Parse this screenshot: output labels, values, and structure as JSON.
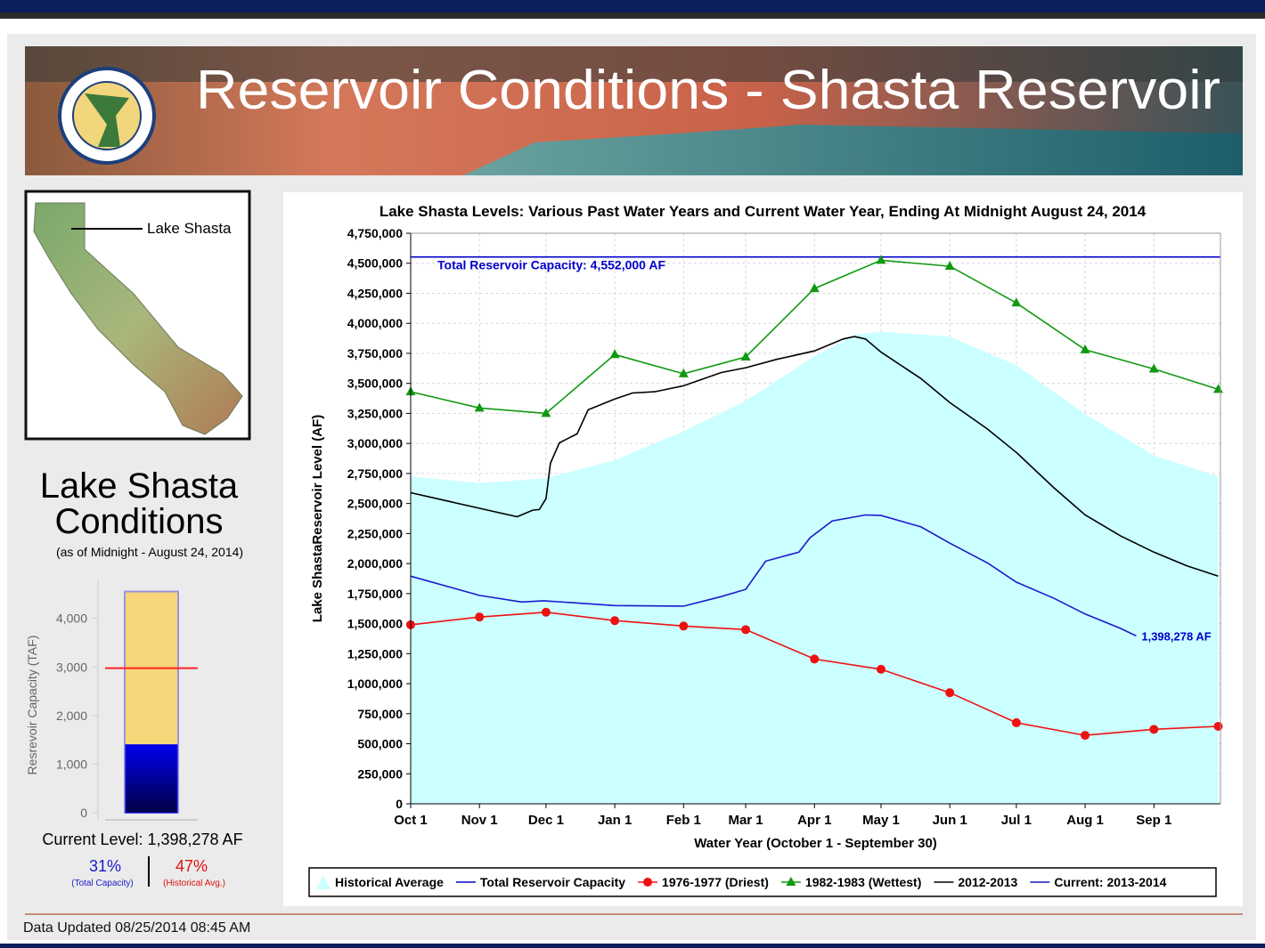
{
  "header": {
    "title": "Reservoir Conditions - Shasta Reservoir"
  },
  "sidebar": {
    "map_label": "Lake Shasta",
    "heading_line1": "Lake Shasta",
    "heading_line2": "Conditions",
    "as_of": "(as of Midnight - August 24, 2014)",
    "current_level": "Current Level: 1,398,278 AF",
    "pct_capacity": "31%",
    "pct_capacity_note": "(Total Capacity)",
    "pct_average": "47%",
    "pct_average_note": "(Historical Avg.)"
  },
  "chart_data": [
    {
      "type": "gauge",
      "y_label": "Resrevoir Capacity (TAF)",
      "ylim": [
        0,
        4800
      ],
      "yticks": [
        0,
        {
          "value": 1000,
          "label": "1,000"
        },
        {
          "value": 2000,
          "label": "2,000"
        },
        {
          "value": 3000,
          "label": "3,000"
        },
        {
          "value": 4000,
          "label": "4,000"
        }
      ],
      "capacity": 4552,
      "capacity_color": "#f7d67a",
      "current": 1398.278,
      "current_color": "#0000ee",
      "historical_average": 2975,
      "historical_average_color": "#ff2222"
    },
    {
      "type": "line",
      "title": "Lake Shasta Levels: Various Past Water Years and Current Water Year, Ending At Midnight August 24, 2014",
      "x_label": "Water Year (October 1 - September 30)",
      "y_label": "Lake ShastaReservoir Level (AF)",
      "xlim": [
        0,
        365
      ],
      "xticks": [
        {
          "value": 0,
          "label": "Oct 1"
        },
        {
          "value": 31,
          "label": "Nov 1"
        },
        {
          "value": 61,
          "label": "Dec 1"
        },
        {
          "value": 92,
          "label": "Jan 1"
        },
        {
          "value": 123,
          "label": "Feb 1"
        },
        {
          "value": 151,
          "label": "Mar 1"
        },
        {
          "value": 182,
          "label": "Apr 1"
        },
        {
          "value": 212,
          "label": "May 1"
        },
        {
          "value": 243,
          "label": "Jun 1"
        },
        {
          "value": 273,
          "label": "Jul 1"
        },
        {
          "value": 304,
          "label": "Aug 1"
        },
        {
          "value": 335,
          "label": "Sep 1"
        }
      ],
      "ylim": [
        0,
        4750000
      ],
      "yticks": [
        0,
        {
          "value": 250000,
          "label": "250,000"
        },
        {
          "value": 500000,
          "label": "500,000"
        },
        {
          "value": 750000,
          "label": "750,000"
        },
        {
          "value": 1000000,
          "label": "1,000,000"
        },
        {
          "value": 1250000,
          "label": "1,250,000"
        },
        {
          "value": 1500000,
          "label": "1,500,000"
        },
        {
          "value": 1750000,
          "label": "1,750,000"
        },
        {
          "value": 2000000,
          "label": "2,000,000"
        },
        {
          "value": 2250000,
          "label": "2,250,000"
        },
        {
          "value": 2500000,
          "label": "2,500,000"
        },
        {
          "value": 2750000,
          "label": "2,750,000"
        },
        {
          "value": 3000000,
          "label": "3,000,000"
        },
        {
          "value": 3250000,
          "label": "3,250,000"
        },
        {
          "value": 3500000,
          "label": "3,500,000"
        },
        {
          "value": 3750000,
          "label": "3,750,000"
        },
        {
          "value": 4000000,
          "label": "4,000,000"
        },
        {
          "value": 4250000,
          "label": "4,250,000"
        },
        {
          "value": 4500000,
          "label": "4,500,000"
        },
        {
          "value": 4750000,
          "label": "4,750,000"
        }
      ],
      "grid": true,
      "series": [
        {
          "name": "Historical Average",
          "color": "#ccffff",
          "style": "area",
          "x": [
            0,
            31,
            61,
            92,
            123,
            151,
            182,
            201,
            212,
            243,
            273,
            304,
            335,
            364
          ],
          "values": [
            2725000,
            2670000,
            2710000,
            2860000,
            3100000,
            3355000,
            3725000,
            3910000,
            3930000,
            3890000,
            3650000,
            3245000,
            2900000,
            2725000
          ]
        },
        {
          "name": "Total Reservoir Capacity",
          "color": "#0000cc",
          "style": "line",
          "x": [
            0,
            365
          ],
          "values": [
            4552000,
            4552000
          ]
        },
        {
          "name": "1976-1977 (Driest)",
          "color": "#ee1111",
          "style": "line",
          "marker": "circle",
          "x": [
            0,
            31,
            61,
            92,
            123,
            151,
            182,
            212,
            243,
            273,
            304,
            335,
            364
          ],
          "values": [
            1490000,
            1555000,
            1595000,
            1525000,
            1480000,
            1450000,
            1205000,
            1120000,
            925000,
            675000,
            570000,
            620000,
            645000
          ]
        },
        {
          "name": "1982-1983 (Wettest)",
          "color": "#119911",
          "style": "line",
          "marker": "triangle",
          "x": [
            0,
            31,
            61,
            92,
            123,
            151,
            182,
            212,
            243,
            273,
            304,
            335,
            364
          ],
          "values": [
            3430000,
            3295000,
            3250000,
            3740000,
            3580000,
            3720000,
            4290000,
            4525000,
            4475000,
            4170000,
            3780000,
            3620000,
            3450000
          ]
        },
        {
          "name": "2012-2013",
          "color": "#000000",
          "style": "line",
          "x": [
            0,
            31,
            48,
            55,
            58,
            61,
            63,
            67,
            75,
            80,
            92,
            100,
            110,
            123,
            140,
            151,
            165,
            182,
            195,
            200,
            205,
            212,
            230,
            243,
            260,
            273,
            290,
            304,
            320,
            335,
            350,
            364
          ],
          "values": [
            2590000,
            2460000,
            2390000,
            2445000,
            2450000,
            2540000,
            2835000,
            3005000,
            3080000,
            3280000,
            3370000,
            3420000,
            3430000,
            3480000,
            3590000,
            3630000,
            3700000,
            3770000,
            3870000,
            3890000,
            3870000,
            3760000,
            3540000,
            3340000,
            3120000,
            2925000,
            2630000,
            2405000,
            2230000,
            2095000,
            1980000,
            1895000
          ]
        },
        {
          "name": "Current: 2013-2014",
          "color": "#1a1acc",
          "style": "line",
          "x": [
            0,
            31,
            50,
            60,
            92,
            123,
            140,
            151,
            160,
            175,
            180,
            190,
            205,
            212,
            230,
            243,
            260,
            273,
            290,
            304,
            320,
            327
          ],
          "values": [
            1895000,
            1735000,
            1680000,
            1690000,
            1650000,
            1645000,
            1725000,
            1785000,
            2020000,
            2095000,
            2215000,
            2355000,
            2405000,
            2400000,
            2305000,
            2170000,
            2005000,
            1845000,
            1710000,
            1580000,
            1460000,
            1398278
          ]
        }
      ],
      "annotations": [
        {
          "text": "Total Reservoir Capacity: 4,552,000 AF",
          "color": "#0000cc"
        },
        {
          "text": "1,398,278 AF",
          "color": "#0000cc"
        }
      ]
    }
  ],
  "footer": {
    "updated": "Data Updated 08/25/2014 08:45 AM"
  }
}
